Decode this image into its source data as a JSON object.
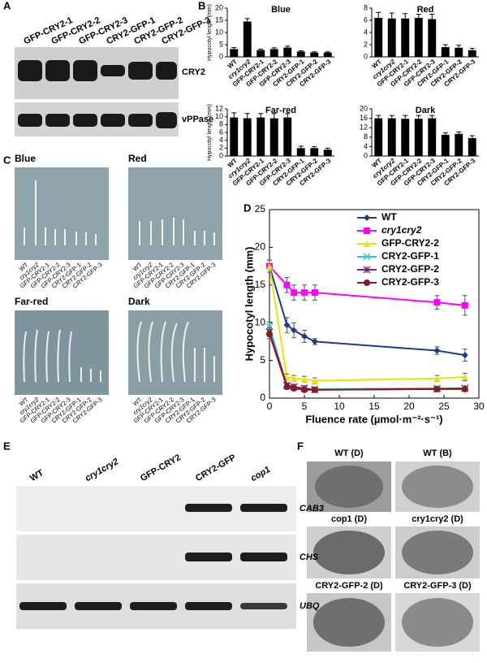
{
  "panel_labels": [
    "A",
    "B",
    "C",
    "D",
    "E",
    "F"
  ],
  "blot": {
    "lanes": [
      "GFP-CRY2-1",
      "GFP-CRY2-2",
      "GFP-CRY2-3",
      "CRY2-GFP-1",
      "CRY2-GFP-2",
      "CRY2-GFP-3"
    ],
    "rows": [
      "CRY2",
      "vPPase"
    ]
  },
  "chart_data": [
    {
      "type": "bar",
      "title": "Blue",
      "y_label": "Hypocotyl length (mm)",
      "color": "#000000",
      "categories": [
        "WT",
        "cry1cry2",
        "GFP-CRY2-1",
        "GFP-CRY2-2",
        "GFP-CRY2-3",
        "CRY2-GFP-1",
        "CRY2-GFP-2",
        "CRY2-GFP-3"
      ],
      "values": [
        3.2,
        14.5,
        2.8,
        3.2,
        3.8,
        2.2,
        1.8,
        1.8
      ],
      "errors": [
        0.6,
        1.2,
        0.4,
        0.5,
        0.6,
        0.3,
        0.3,
        0.3
      ],
      "ylim": [
        0,
        20
      ],
      "yticks": [
        0,
        5,
        10,
        15,
        20
      ]
    },
    {
      "type": "bar",
      "title": "Red",
      "color": "#000000",
      "categories": [
        "WT",
        "cry1cry2",
        "GFP-CRY2-1",
        "GFP-CRY2-2",
        "GFP-CRY2-3",
        "CRY2-GFP-1",
        "CRY2-GFP-2",
        "CRY2-GFP-3"
      ],
      "values": [
        6.4,
        6.3,
        6.3,
        6.4,
        6.2,
        1.6,
        1.5,
        1.1
      ],
      "errors": [
        0.9,
        0.9,
        0.8,
        0.6,
        0.8,
        0.4,
        0.4,
        0.3
      ],
      "ylim": [
        0,
        8
      ],
      "yticks": [
        0,
        2,
        4,
        6,
        8
      ]
    },
    {
      "type": "bar",
      "title": "Far-red",
      "y_label": "Hypocotyl length (mm)",
      "color": "#000000",
      "categories": [
        "WT",
        "cry1cry2",
        "GFP-CRY2-1",
        "GFP-CRY2-2",
        "GFP-CRY2-3",
        "CRY2-GFP-1",
        "CRY2-GFP-2",
        "CRY2-GFP-3"
      ],
      "values": [
        9.8,
        9.6,
        9.8,
        9.6,
        9.8,
        2.0,
        2.0,
        1.6
      ],
      "errors": [
        1.2,
        1.2,
        1.0,
        1.2,
        1.0,
        0.5,
        0.4,
        0.4
      ],
      "ylim": [
        0,
        12
      ],
      "yticks": [
        0,
        2,
        4,
        6,
        8,
        10,
        12
      ]
    },
    {
      "type": "bar",
      "title": "Dark",
      "color": "#000000",
      "categories": [
        "WT",
        "cry1cry2",
        "GFP-CRY2-1",
        "GFP-CRY2-2",
        "GFP-CRY2-3",
        "CRY2-GFP-1",
        "CRY2-GFP-2",
        "CRY2-GFP-3"
      ],
      "values": [
        16,
        16,
        15.8,
        15.8,
        16,
        9,
        9.4,
        7.6
      ],
      "errors": [
        1.2,
        1.2,
        1.4,
        1.4,
        1.2,
        0.8,
        0.8,
        1.0
      ],
      "ylim": [
        0,
        20
      ],
      "yticks": [
        0,
        4,
        8,
        12,
        16,
        20
      ]
    },
    {
      "type": "line",
      "y_label": "Hypocotyl length (mm)",
      "x_label": "Fluence rate (µmol·m⁻²·s⁻¹)",
      "x": [
        0,
        2.5,
        3.5,
        5,
        6.5,
        24,
        28
      ],
      "xlim": [
        0,
        30
      ],
      "xticks": [
        0,
        5,
        10,
        15,
        20,
        25,
        30
      ],
      "ylim": [
        0,
        25
      ],
      "yticks": [
        0,
        5,
        10,
        15,
        20,
        25
      ],
      "legend": "upper right",
      "series": [
        {
          "name": "WT",
          "color": "#1c3a94",
          "marker": "diamond",
          "values": [
            17.5,
            9.7,
            9.0,
            8.2,
            7.5,
            6.3,
            5.7
          ],
          "errors": [
            0.8,
            1.0,
            1.0,
            0.8,
            0.4,
            0.5,
            0.8
          ]
        },
        {
          "name": "cry1cry2",
          "color": "#ff00ff",
          "marker": "square",
          "values": [
            17.5,
            15.0,
            14.0,
            14.0,
            14.0,
            12.7,
            12.3
          ],
          "errors": [
            0.8,
            1.0,
            1.0,
            1.0,
            1.0,
            0.9,
            1.3
          ]
        },
        {
          "name": "GFP-CRY2-2",
          "color": "#e6e600",
          "marker": "triangle",
          "values": [
            17.5,
            2.8,
            2.6,
            2.5,
            2.3,
            2.6,
            2.8
          ],
          "errors": [
            0.8,
            0.4,
            0.4,
            0.4,
            0.4,
            0.4,
            0.5
          ]
        },
        {
          "name": "CRY2-GFP-1",
          "color": "#22c8dc",
          "marker": "x",
          "values": [
            9.5,
            1.6,
            1.5,
            1.3,
            1.2,
            1.3,
            1.3
          ],
          "errors": [
            0.6,
            0.3,
            0.3,
            0.3,
            0.2,
            0.2,
            0.2
          ]
        },
        {
          "name": "CRY2-GFP-2",
          "color": "#7a2a7a",
          "marker": "star",
          "values": [
            8.8,
            1.7,
            1.5,
            1.3,
            1.1,
            1.2,
            1.3
          ],
          "errors": [
            0.6,
            0.3,
            0.3,
            0.3,
            0.2,
            0.2,
            0.2
          ]
        },
        {
          "name": "CRY2-GFP-3",
          "color": "#8b1a1a",
          "marker": "circle",
          "values": [
            8.5,
            1.5,
            1.3,
            1.1,
            1.1,
            1.2,
            1.2
          ],
          "errors": [
            0.6,
            0.3,
            0.3,
            0.2,
            0.2,
            0.2,
            0.2
          ]
        }
      ]
    }
  ],
  "gel": {
    "lanes": [
      "WT",
      "cry1cry2",
      "GFP-CRY2",
      "CRY2-GFP",
      "cop1"
    ],
    "rows": [
      "CAB3",
      "CHS",
      "UBQ"
    ]
  },
  "micrographs": {
    "labels": [
      "WT (D)",
      "WT (B)",
      "cop1 (D)",
      "cry1cry2 (D)",
      "CRY2-GFP-2 (D)",
      "CRY2-GFP-3 (D)"
    ]
  }
}
